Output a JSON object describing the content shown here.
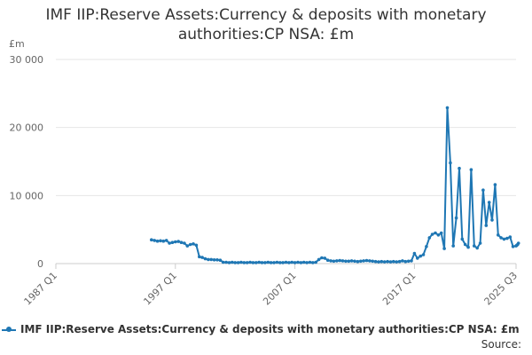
{
  "chart_data": {
    "type": "line",
    "title_lines": [
      "IMF IIP:Reserve Assets:Currency & deposits with monetary",
      "authorities:CP NSA: £m"
    ],
    "ylabel": "£m",
    "xlabel": "",
    "ylim": [
      0,
      30000
    ],
    "y_ticks": [
      0,
      10000,
      20000,
      30000
    ],
    "y_tick_labels": [
      "0",
      "10 000",
      "20 000",
      "30 000"
    ],
    "x_start": "1987 Q1",
    "x_end": "2025 Q3",
    "x_tick_labels": [
      "1987 Q1",
      "1997 Q1",
      "2007 Q1",
      "2017 Q1",
      "2025 Q3"
    ],
    "grid": "horizontal",
    "legend_position": "bottom",
    "series": [
      {
        "name": "IMF IIP:Reserve Assets:Currency & deposits with monetary authorities:CP NSA: £m",
        "color": "#1f77b4",
        "points": [
          [
            "1995 Q1",
            3500
          ],
          [
            "1995 Q2",
            3400
          ],
          [
            "1995 Q3",
            3300
          ],
          [
            "1995 Q4",
            3350
          ],
          [
            "1996 Q1",
            3300
          ],
          [
            "1996 Q2",
            3400
          ],
          [
            "1996 Q3",
            3000
          ],
          [
            "1996 Q4",
            3100
          ],
          [
            "1997 Q1",
            3200
          ],
          [
            "1997 Q2",
            3250
          ],
          [
            "1997 Q3",
            3100
          ],
          [
            "1997 Q4",
            3000
          ],
          [
            "1998 Q1",
            2600
          ],
          [
            "1998 Q2",
            2800
          ],
          [
            "1998 Q3",
            2900
          ],
          [
            "1998 Q4",
            2700
          ],
          [
            "1999 Q1",
            1000
          ],
          [
            "1999 Q2",
            900
          ],
          [
            "1999 Q3",
            700
          ],
          [
            "1999 Q4",
            600
          ],
          [
            "2000 Q1",
            600
          ],
          [
            "2000 Q2",
            550
          ],
          [
            "2000 Q3",
            550
          ],
          [
            "2000 Q4",
            500
          ],
          [
            "2001 Q1",
            200
          ],
          [
            "2001 Q2",
            200
          ],
          [
            "2001 Q3",
            150
          ],
          [
            "2001 Q4",
            200
          ],
          [
            "2002 Q1",
            150
          ],
          [
            "2002 Q2",
            150
          ],
          [
            "2002 Q3",
            200
          ],
          [
            "2002 Q4",
            150
          ],
          [
            "2003 Q1",
            150
          ],
          [
            "2003 Q2",
            200
          ],
          [
            "2003 Q3",
            150
          ],
          [
            "2003 Q4",
            150
          ],
          [
            "2004 Q1",
            200
          ],
          [
            "2004 Q2",
            150
          ],
          [
            "2004 Q3",
            150
          ],
          [
            "2004 Q4",
            200
          ],
          [
            "2005 Q1",
            150
          ],
          [
            "2005 Q2",
            150
          ],
          [
            "2005 Q3",
            200
          ],
          [
            "2005 Q4",
            150
          ],
          [
            "2006 Q1",
            150
          ],
          [
            "2006 Q2",
            200
          ],
          [
            "2006 Q3",
            150
          ],
          [
            "2006 Q4",
            200
          ],
          [
            "2007 Q1",
            150
          ],
          [
            "2007 Q2",
            200
          ],
          [
            "2007 Q3",
            150
          ],
          [
            "2007 Q4",
            200
          ],
          [
            "2008 Q1",
            150
          ],
          [
            "2008 Q2",
            200
          ],
          [
            "2008 Q3",
            150
          ],
          [
            "2008 Q4",
            200
          ],
          [
            "2009 Q1",
            600
          ],
          [
            "2009 Q2",
            850
          ],
          [
            "2009 Q3",
            800
          ],
          [
            "2009 Q4",
            500
          ],
          [
            "2010 Q1",
            400
          ],
          [
            "2010 Q2",
            350
          ],
          [
            "2010 Q3",
            400
          ],
          [
            "2010 Q4",
            450
          ],
          [
            "2011 Q1",
            400
          ],
          [
            "2011 Q2",
            350
          ],
          [
            "2011 Q3",
            350
          ],
          [
            "2011 Q4",
            400
          ],
          [
            "2012 Q1",
            350
          ],
          [
            "2012 Q2",
            300
          ],
          [
            "2012 Q3",
            350
          ],
          [
            "2012 Q4",
            400
          ],
          [
            "2013 Q1",
            450
          ],
          [
            "2013 Q2",
            400
          ],
          [
            "2013 Q3",
            350
          ],
          [
            "2013 Q4",
            300
          ],
          [
            "2014 Q1",
            250
          ],
          [
            "2014 Q2",
            300
          ],
          [
            "2014 Q3",
            250
          ],
          [
            "2014 Q4",
            300
          ],
          [
            "2015 Q1",
            250
          ],
          [
            "2015 Q2",
            300
          ],
          [
            "2015 Q3",
            250
          ],
          [
            "2015 Q4",
            300
          ],
          [
            "2016 Q1",
            400
          ],
          [
            "2016 Q2",
            300
          ],
          [
            "2016 Q3",
            350
          ],
          [
            "2016 Q4",
            400
          ],
          [
            "2017 Q1",
            1500
          ],
          [
            "2017 Q2",
            800
          ],
          [
            "2017 Q3",
            1100
          ],
          [
            "2017 Q4",
            1300
          ],
          [
            "2018 Q1",
            2500
          ],
          [
            "2018 Q2",
            3800
          ],
          [
            "2018 Q3",
            4300
          ],
          [
            "2018 Q4",
            4500
          ],
          [
            "2019 Q1",
            4200
          ],
          [
            "2019 Q2",
            4500
          ],
          [
            "2019 Q3",
            2200
          ],
          [
            "2019 Q4",
            22900
          ],
          [
            "2020 Q1",
            14800
          ],
          [
            "2020 Q2",
            2600
          ],
          [
            "2020 Q3",
            6700
          ],
          [
            "2020 Q4",
            14000
          ],
          [
            "2021 Q1",
            3600
          ],
          [
            "2021 Q2",
            2800
          ],
          [
            "2021 Q3",
            2400
          ],
          [
            "2021 Q4",
            13800
          ],
          [
            "2022 Q1",
            2600
          ],
          [
            "2022 Q2",
            2300
          ],
          [
            "2022 Q3",
            3000
          ],
          [
            "2022 Q4",
            10800
          ],
          [
            "2023 Q1",
            5600
          ],
          [
            "2023 Q2",
            9000
          ],
          [
            "2023 Q3",
            6400
          ],
          [
            "2023 Q4",
            11600
          ],
          [
            "2024 Q1",
            4200
          ],
          [
            "2024 Q2",
            3800
          ],
          [
            "2024 Q3",
            3600
          ],
          [
            "2024 Q4",
            3700
          ],
          [
            "2025 Q1",
            3900
          ],
          [
            "2025 Q2",
            2500
          ],
          [
            "2025 Q3",
            2600
          ]
        ],
        "extra_points": [
          [
            "2025 Q3",
            2700
          ],
          [
            "2025 Q3",
            2800
          ],
          [
            "2025 Q3",
            3000
          ]
        ]
      }
    ]
  },
  "source_label": "Source:"
}
